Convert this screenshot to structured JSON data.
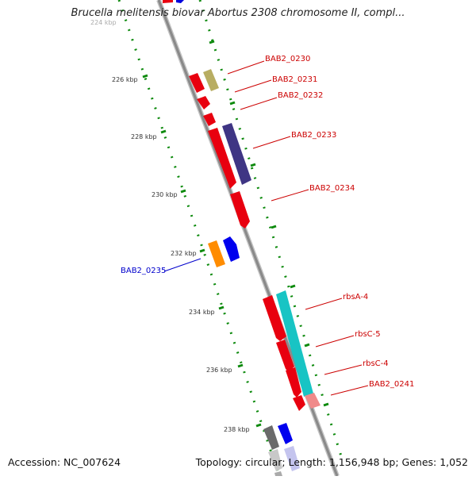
{
  "title": "Brucella melitensis biovar Abortus 2308 chromosome II, compl...",
  "footer": {
    "accession": "Accession: NC_007624",
    "summary": "Topology: circular; Length: 1,156,948 bp; Genes: 1,052"
  },
  "colors": {
    "forward_gene": "#e8000f",
    "backbone": "#8a8a8a",
    "tick": "#0d8a0d",
    "label_red": "#cc0000",
    "label_blue": "#0000cc"
  },
  "ticks": [
    {
      "label": "224 kbp"
    },
    {
      "label": "226 kbp"
    },
    {
      "label": "228 kbp"
    },
    {
      "label": "230 kbp"
    },
    {
      "label": "232 kbp"
    },
    {
      "label": "234 kbp"
    },
    {
      "label": "236 kbp"
    },
    {
      "label": "238 kbp"
    }
  ],
  "gene_labels": [
    {
      "name": "BAB2_0230",
      "color": "red"
    },
    {
      "name": "BAB2_0231",
      "color": "red"
    },
    {
      "name": "BAB2_0232",
      "color": "red"
    },
    {
      "name": "BAB2_0233",
      "color": "red"
    },
    {
      "name": "BAB2_0234",
      "color": "red"
    },
    {
      "name": "BAB2_0235",
      "color": "blue"
    },
    {
      "name": "rbsA-4",
      "color": "red"
    },
    {
      "name": "rbsC-5",
      "color": "red"
    },
    {
      "name": "rbsC-4",
      "color": "red"
    },
    {
      "name": "BAB2_0241",
      "color": "red"
    }
  ]
}
